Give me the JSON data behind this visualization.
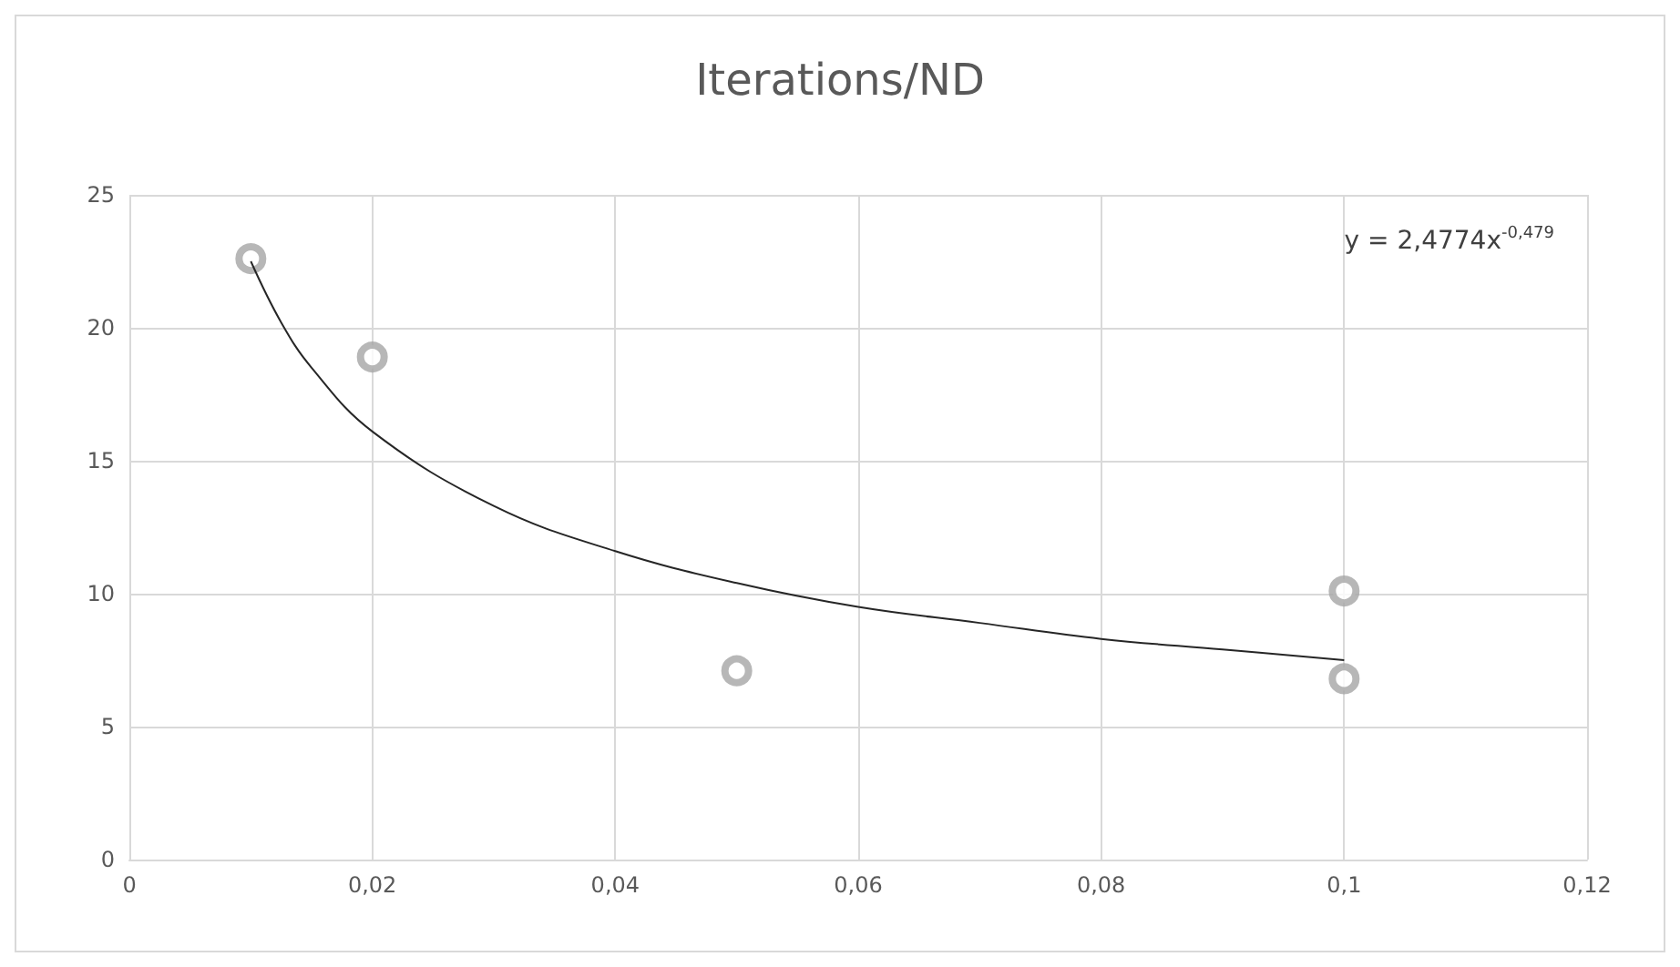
{
  "chart_data": {
    "type": "scatter",
    "title": "Iterations/ND",
    "series": [
      {
        "marker": "circle",
        "color": "#a5a5a5",
        "x": [
          0.01,
          0.02,
          0.05,
          0.1,
          0.1
        ],
        "values": [
          22.6,
          18.9,
          7.1,
          10.1,
          6.8
        ]
      },
      {
        "type": "line",
        "marker": "none",
        "color": "#262626",
        "x": [
          0.01,
          0.0125,
          0.015,
          0.02,
          0.03,
          0.04,
          0.05,
          0.06,
          0.07,
          0.08,
          0.09,
          0.1
        ],
        "values": [
          22.5,
          20.2,
          18.5,
          16.1,
          13.3,
          11.6,
          10.4,
          9.5,
          8.9,
          8.3,
          7.9,
          7.5
        ]
      }
    ],
    "annotations": [
      "y = 2,4774x$^{-0,479}$"
    ],
    "xlim": [
      0,
      0.12
    ],
    "xticks": [
      0,
      {
        "value": 0.02,
        "label": "0,02"
      },
      {
        "value": 0.04,
        "label": "0,04"
      },
      {
        "value": 0.06,
        "label": "0,06"
      },
      {
        "value": 0.08,
        "label": "0,08"
      },
      {
        "value": 0.1,
        "label": "0,1"
      },
      {
        "value": 0.12,
        "label": "0,12"
      }
    ],
    "ylim": [
      0,
      25
    ],
    "yticks": [
      0,
      5,
      10,
      15,
      20,
      25
    ],
    "grid": true
  }
}
